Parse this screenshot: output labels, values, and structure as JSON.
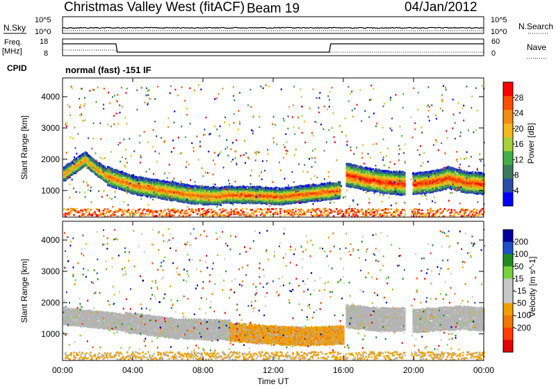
{
  "header": {
    "title": "Christmas Valley West (fitACF)",
    "beam": "Beam 19",
    "date": "04/Jan/2012"
  },
  "strips": {
    "nsky": {
      "label": "N.Sky",
      "left_ticks": [
        "10^5",
        "10^0"
      ],
      "right_ticks": [
        "10^5",
        "10^0"
      ],
      "right_label": "N.Search"
    },
    "freq": {
      "label_line1": "Freq.",
      "label_line2": "[MHz]",
      "left_ticks": [
        "18",
        "8"
      ],
      "right_ticks": [
        "60",
        "0"
      ],
      "right_label": "Nave"
    },
    "cpid": {
      "label": "CPID",
      "text": "normal (fast) -151 IF"
    }
  },
  "colors": {
    "power_scale": [
      "#0000ff",
      "#2a4ca8",
      "#3c7a5c",
      "#41b046",
      "#a8d23a",
      "#f7b81a",
      "#f28c12",
      "#ff4d00",
      "#ff0000"
    ],
    "velocity_scale": [
      "#0000a0",
      "#1e50c8",
      "#1e8c1e",
      "#78d23c",
      "#c8c8c8",
      "#c8c8c8",
      "#f0a000",
      "#f07800",
      "#ff3c00",
      "#e60000"
    ],
    "ground_scatter": "#b4b4b4"
  },
  "chart_data": [
    {
      "type": "heatmap",
      "name": "power",
      "ylabel": "Slant Range [km]",
      "yticks": [
        "1000",
        "2000",
        "3000",
        "4000"
      ],
      "ylim": [
        150,
        4600
      ],
      "xlim_hours": [
        0,
        24
      ],
      "colorbar_label": "Power [dB]",
      "colorbar_ticks": [
        "4",
        "8",
        "12",
        "16",
        "20",
        "24",
        "28"
      ],
      "colorbar_range": [
        0,
        32
      ],
      "bands": [
        {
          "start_hr": 0.0,
          "end_hr": 2.5,
          "center_km": [
            1550,
            1800,
            2050,
            1750,
            1500
          ],
          "width_km": 420,
          "power_db": 22
        },
        {
          "start_hr": 2.5,
          "end_hr": 9.0,
          "center_km": [
            1500,
            1200,
            1050,
            900,
            850
          ],
          "width_km": 550,
          "power_db": 24
        },
        {
          "start_hr": 9.0,
          "end_hr": 15.8,
          "center_km": [
            900,
            900,
            850,
            950,
            1050
          ],
          "width_km": 500,
          "power_db": 26
        },
        {
          "start_hr": 16.1,
          "end_hr": 19.6,
          "center_km": [
            1550,
            1400,
            1300,
            1250
          ],
          "width_km": 700,
          "power_db": 29
        },
        {
          "start_hr": 19.9,
          "end_hr": 24.0,
          "center_km": [
            1250,
            1300,
            1450,
            1300,
            1250
          ],
          "width_km": 650,
          "power_db": 28
        }
      ],
      "near_range_band_km": [
        200,
        450
      ],
      "data_gaps_hours": [
        [
          19.55,
          19.85
        ]
      ]
    },
    {
      "type": "heatmap",
      "name": "velocity",
      "ylabel": "Slant Range [km]",
      "yticks": [
        "1000",
        "2000",
        "3000",
        "4000"
      ],
      "ylim": [
        150,
        4600
      ],
      "xlim_hours": [
        0,
        24
      ],
      "colorbar_label": "Velocity [m s^-1]",
      "colorbar_ticks": [
        "200",
        "100",
        "50",
        "15",
        "-15",
        "-50",
        "-100",
        "-200"
      ],
      "bands": [
        {
          "start_hr": 0.0,
          "end_hr": 3.5,
          "center_km": [
            1600,
            1500,
            1400
          ],
          "width_km": 500,
          "kind": "ground"
        },
        {
          "start_hr": 3.5,
          "end_hr": 9.5,
          "center_km": [
            1400,
            1200,
            1150
          ],
          "width_km": 600,
          "kind": "ground"
        },
        {
          "start_hr": 9.5,
          "end_hr": 16.0,
          "center_km": [
            1100,
            1000,
            950,
            1000
          ],
          "width_km": 550,
          "kind": "mixed"
        },
        {
          "start_hr": 16.1,
          "end_hr": 19.6,
          "center_km": [
            1600,
            1500,
            1500
          ],
          "width_km": 700,
          "kind": "ground"
        },
        {
          "start_hr": 19.9,
          "end_hr": 24.0,
          "center_km": [
            1450,
            1500,
            1550,
            1500
          ],
          "width_km": 700,
          "kind": "ground"
        }
      ]
    }
  ],
  "xaxis": {
    "ticks": [
      "00:00",
      "04:00",
      "08:00",
      "12:00",
      "16:00",
      "20:00",
      "00:00"
    ],
    "label": "Time UT"
  }
}
